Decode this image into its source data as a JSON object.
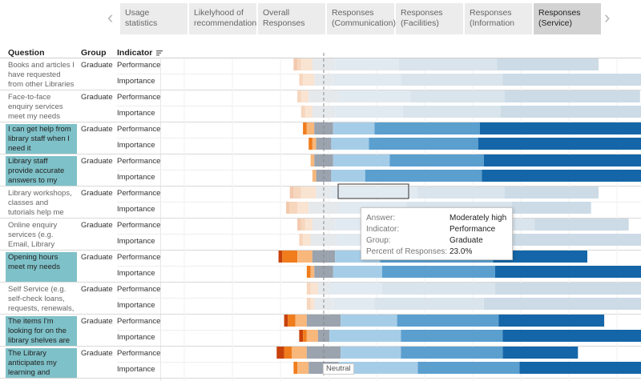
{
  "tabs": [
    {
      "label": "Usage statistics",
      "active": false
    },
    {
      "label": "Likelyhood of recommendation",
      "active": false
    },
    {
      "label": "Overall Responses",
      "active": false
    },
    {
      "label": "Responses (Communication)",
      "active": false
    },
    {
      "label": "Responses (Facilities)",
      "active": false
    },
    {
      "label": "Responses (Information",
      "active": false
    },
    {
      "label": "Responses (Service)",
      "active": true
    }
  ],
  "nav": {
    "prev_icon": "chevron-left-icon",
    "next_icon": "chevron-right-icon"
  },
  "columns": {
    "question": "Question",
    "group": "Group",
    "indicator": "Indicator"
  },
  "neutral_label": "Neutral",
  "colors": {
    "very_low": "#c8410a",
    "low": "#f07c1c",
    "moderately_low": "#f8b77b",
    "neutral": "#9aa3ae",
    "moderately_high": "#a6cde8",
    "high": "#5b9fcf",
    "very_high": "#1466a8",
    "selected_row": "#7fc1c8"
  },
  "tooltip": {
    "answer_key": "Answer:",
    "answer_val": "Moderately high",
    "indicator_key": "Indicator:",
    "indicator_val": "Performance",
    "group_key": "Group:",
    "group_val": "Graduate",
    "percent_key": "Percent of Responses:",
    "percent_val": "23.0%"
  },
  "rows": [
    {
      "question": "Books and articles I have requested from other Libraries are d...",
      "group": "Graduate",
      "selected": false,
      "performance": [
        1,
        1,
        3,
        6,
        17,
        26,
        27
      ],
      "importance": [
        0,
        1,
        3,
        5,
        18,
        27,
        40
      ]
    },
    {
      "question": "Face-to-face enquiry services meet my needs",
      "group": "Graduate",
      "selected": false,
      "performance": [
        0,
        1,
        2,
        8,
        19,
        25,
        36
      ],
      "importance": [
        0,
        1,
        2,
        6,
        18,
        26,
        38
      ]
    },
    {
      "question": "I can get help from library staff when I need it",
      "group": "Graduate",
      "selected": true,
      "performance": [
        0,
        1,
        2,
        5,
        11,
        28,
        43
      ],
      "importance": [
        0,
        1,
        1,
        4,
        10,
        29,
        49
      ]
    },
    {
      "question": "Library staff provide accurate answers to my enquiries",
      "group": "Graduate",
      "selected": true,
      "performance": [
        0,
        0,
        1,
        5,
        15,
        25,
        47
      ],
      "importance": [
        0,
        0,
        1,
        4,
        9,
        31,
        48
      ]
    },
    {
      "question": "Library workshops, classes and tutorials help me with my lea...",
      "group": "Graduate",
      "selected": false,
      "performance": [
        1,
        2,
        4,
        4,
        23,
        23,
        25
      ],
      "importance": [
        1,
        2,
        3,
        8,
        18,
        28,
        21
      ]
    },
    {
      "question": "Online enquiry services (e.g. Email, Library Chat) meet ...",
      "group": "Graduate",
      "selected": false,
      "performance": [
        1,
        1,
        2,
        6,
        23,
        30,
        25
      ],
      "importance": [
        0,
        1,
        2,
        7,
        19,
        27,
        44
      ]
    },
    {
      "question": "Opening hours meet my needs",
      "group": "Graduate",
      "selected": true,
      "performance": [
        1,
        4,
        4,
        6,
        12,
        30,
        25
      ],
      "importance": [
        0,
        1,
        1,
        5,
        13,
        30,
        46
      ]
    },
    {
      "question": "Self Service (e.g. self-check loans, requests, renewals, ...",
      "group": "Graduate",
      "selected": false,
      "performance": [
        0,
        1,
        2,
        3,
        14,
        30,
        41
      ],
      "importance": [
        0,
        1,
        1,
        5,
        11,
        29,
        49
      ]
    },
    {
      "question": "The items I'm looking for on the library shelves are usually t...",
      "group": "Graduate",
      "selected": true,
      "performance": [
        1,
        2,
        3,
        9,
        15,
        27,
        28
      ],
      "importance": [
        1,
        1,
        3,
        3,
        19,
        27,
        46
      ]
    },
    {
      "question": "The Library anticipates my learning and researc...",
      "group": "Graduate",
      "selected": true,
      "performance": [
        2,
        2,
        4,
        9,
        16,
        27,
        20
      ],
      "importance": [
        0,
        1,
        3,
        8,
        21,
        27,
        38
      ]
    }
  ]
}
